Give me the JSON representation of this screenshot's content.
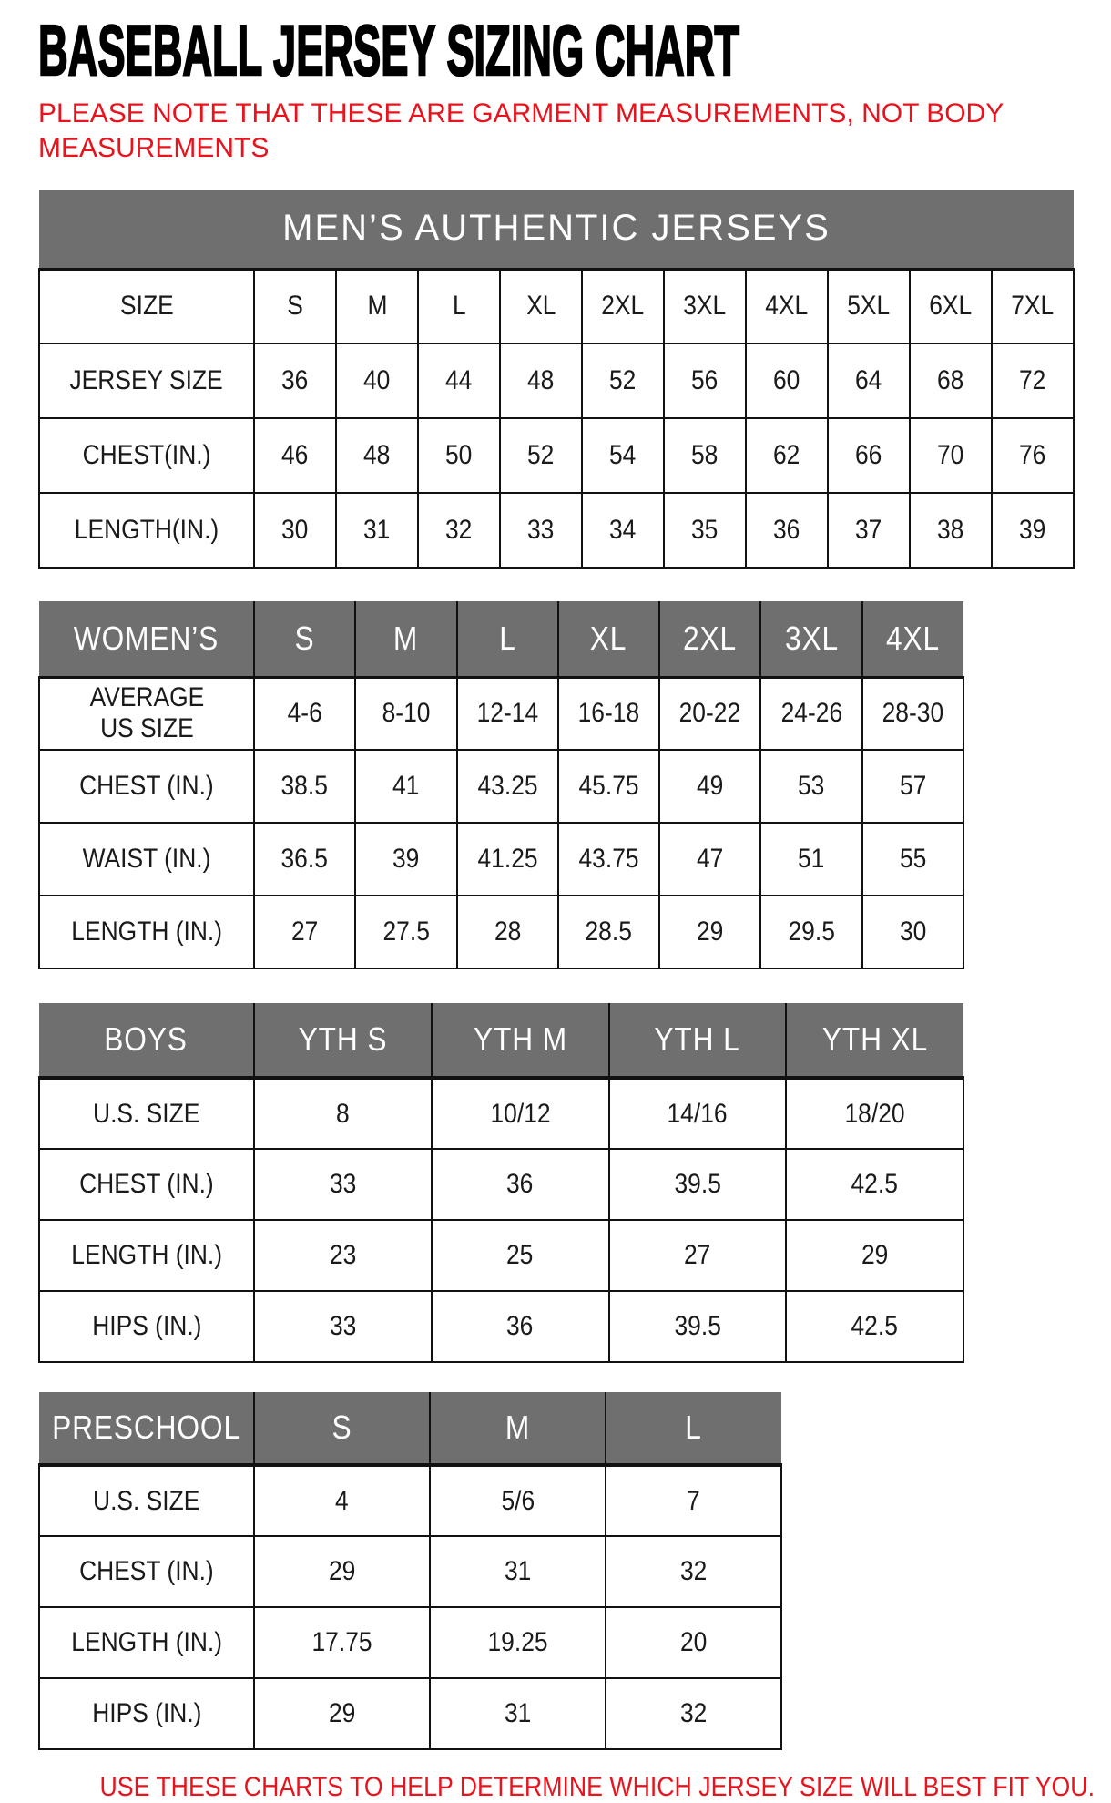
{
  "page": {
    "title": "BASEBALL JERSEY SIZING CHART",
    "note": "PLEASE NOTE THAT THESE ARE GARMENT MEASUREMENTS, NOT BODY\nMEASUREMENTS",
    "footer": "USE THESE CHARTS TO HELP DETERMINE WHICH JERSEY SIZE WILL BEST FIT YOU.",
    "colors": {
      "header_gray": "#6F6F6F",
      "accent_red": "#E8131D",
      "border": "#111111",
      "text": "#1A1A1A"
    }
  },
  "tables": {
    "mens": {
      "banner": "MEN’S AUTHENTIC JERSEYS",
      "rows": [
        {
          "label": "SIZE",
          "values": [
            "S",
            "M",
            "L",
            "XL",
            "2XL",
            "3XL",
            "4XL",
            "5XL",
            "6XL",
            "7XL"
          ]
        },
        {
          "label": "JERSEY SIZE",
          "values": [
            "36",
            "40",
            "44",
            "48",
            "52",
            "56",
            "60",
            "64",
            "68",
            "72"
          ]
        },
        {
          "label": "CHEST(IN.)",
          "values": [
            "46",
            "48",
            "50",
            "52",
            "54",
            "58",
            "62",
            "66",
            "70",
            "76"
          ]
        },
        {
          "label": "LENGTH(IN.)",
          "values": [
            "30",
            "31",
            "32",
            "33",
            "34",
            "35",
            "36",
            "37",
            "38",
            "39"
          ]
        }
      ]
    },
    "womens": {
      "header": {
        "label": "WOMEN’S",
        "values": [
          "S",
          "M",
          "L",
          "XL",
          "2XL",
          "3XL",
          "4XL"
        ]
      },
      "rows": [
        {
          "label": "AVERAGE\nUS SIZE",
          "values": [
            "4-6",
            "8-10",
            "12-14",
            "16-18",
            "20-22",
            "24-26",
            "28-30"
          ]
        },
        {
          "label": "CHEST (IN.)",
          "values": [
            "38.5",
            "41",
            "43.25",
            "45.75",
            "49",
            "53",
            "57"
          ]
        },
        {
          "label": "WAIST (IN.)",
          "values": [
            "36.5",
            "39",
            "41.25",
            "43.75",
            "47",
            "51",
            "55"
          ]
        },
        {
          "label": "LENGTH (IN.)",
          "values": [
            "27",
            "27.5",
            "28",
            "28.5",
            "29",
            "29.5",
            "30"
          ]
        }
      ]
    },
    "boys": {
      "header": {
        "label": "BOYS",
        "values": [
          "YTH S",
          "YTH M",
          "YTH L",
          "YTH XL"
        ]
      },
      "rows": [
        {
          "label": "U.S. SIZE",
          "values": [
            "8",
            "10/12",
            "14/16",
            "18/20"
          ]
        },
        {
          "label": "CHEST (IN.)",
          "values": [
            "33",
            "36",
            "39.5",
            "42.5"
          ]
        },
        {
          "label": "LENGTH (IN.)",
          "values": [
            "23",
            "25",
            "27",
            "29"
          ]
        },
        {
          "label": "HIPS (IN.)",
          "values": [
            "33",
            "36",
            "39.5",
            "42.5"
          ]
        }
      ]
    },
    "preschool": {
      "header": {
        "label": "PRESCHOOL",
        "values": [
          "S",
          "M",
          "L"
        ]
      },
      "rows": [
        {
          "label": "U.S. SIZE",
          "values": [
            "4",
            "5/6",
            "7"
          ]
        },
        {
          "label": "CHEST (IN.)",
          "values": [
            "29",
            "31",
            "32"
          ]
        },
        {
          "label": "LENGTH (IN.)",
          "values": [
            "17.75",
            "19.25",
            "20"
          ]
        },
        {
          "label": "HIPS (IN.)",
          "values": [
            "29",
            "31",
            "32"
          ]
        }
      ]
    }
  }
}
